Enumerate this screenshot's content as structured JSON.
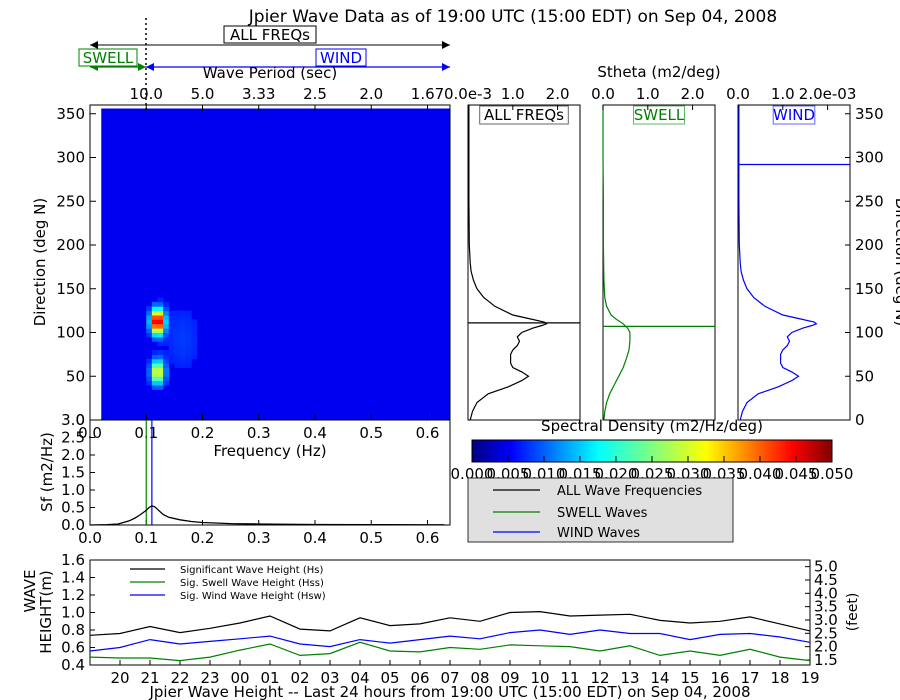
{
  "title": "Jpier Wave Data as of 19:00 UTC (15:00 EDT) on Sep 04, 2008",
  "colors": {
    "all": "#000000",
    "swell": "#008000",
    "wind": "#0000ff",
    "axes": "#000000",
    "legend_bg": "#e0e0e0"
  },
  "band_labels": {
    "all": "ALL FREQs",
    "swell": "SWELL",
    "wind": "WIND"
  },
  "chart_data": [
    {
      "id": "heatmap",
      "type": "heatmap",
      "title": "",
      "xlabel": "Frequency (Hz)",
      "ylabel": "Direction (deg N)",
      "top_xlabel": "Wave Period (sec)",
      "xlim": [
        0.0,
        0.64
      ],
      "ylim": [
        0,
        360
      ],
      "xticks": [
        "0.0",
        "0.1",
        "0.2",
        "0.3",
        "0.4",
        "0.5",
        "0.6"
      ],
      "xtick_values": [
        0.0,
        0.1,
        0.2,
        0.3,
        0.4,
        0.5,
        0.6
      ],
      "yticks": [
        "0",
        "50",
        "100",
        "150",
        "200",
        "250",
        "300",
        "350"
      ],
      "ytick_values": [
        0,
        50,
        100,
        150,
        200,
        250,
        300,
        350
      ],
      "top_ticks": [
        "10.0",
        "5.0",
        "3.33",
        "2.5",
        "2.0",
        "1.67"
      ],
      "top_tick_freqs": [
        0.1,
        0.2,
        0.3,
        0.4,
        0.5,
        0.6
      ],
      "swell_wind_split_hz": 0.1,
      "colorbar": {
        "label": "Spectral Density (m2/Hz/deg)",
        "range": [
          0.0,
          0.05
        ],
        "ticks": [
          "0.000",
          "0.005",
          "0.010",
          "0.015",
          "0.020",
          "0.025",
          "0.030",
          "0.035",
          "0.040",
          "0.045",
          "0.050"
        ]
      },
      "peaks": [
        {
          "freq": 0.12,
          "dir": 113,
          "density": 0.05
        },
        {
          "freq": 0.12,
          "dir": 55,
          "density": 0.03
        }
      ]
    },
    {
      "id": "freq_spectrum",
      "type": "line",
      "title": "",
      "xlabel": "Frequency (Hz)",
      "ylabel": "Sf (m2/Hz)",
      "xlim": [
        0.0,
        0.64
      ],
      "ylim": [
        0.0,
        3.0
      ],
      "xticks": [
        "0.0",
        "0.1",
        "0.2",
        "0.3",
        "0.4",
        "0.5",
        "0.6"
      ],
      "xtick_values": [
        0.0,
        0.1,
        0.2,
        0.3,
        0.4,
        0.5,
        0.6
      ],
      "yticks": [
        "0.0",
        "0.5",
        "1.0",
        "1.5",
        "2.0",
        "2.5",
        "3.0"
      ],
      "ytick_values": [
        0.0,
        0.5,
        1.0,
        1.5,
        2.0,
        2.5,
        3.0
      ],
      "x": [
        0.0,
        0.03,
        0.05,
        0.07,
        0.08,
        0.09,
        0.1,
        0.105,
        0.11,
        0.115,
        0.12,
        0.13,
        0.14,
        0.16,
        0.18,
        0.2,
        0.25,
        0.3,
        0.35,
        0.4,
        0.5,
        0.6,
        0.63
      ],
      "y": [
        0.0,
        0.01,
        0.03,
        0.12,
        0.2,
        0.3,
        0.42,
        0.5,
        0.55,
        0.52,
        0.45,
        0.3,
        0.22,
        0.15,
        0.1,
        0.07,
        0.04,
        0.03,
        0.02,
        0.015,
        0.01,
        0.005,
        0.005
      ],
      "vlines": [
        {
          "x": 0.1,
          "color": "#008000"
        },
        {
          "x": 0.11,
          "color": "#0000ff"
        }
      ]
    },
    {
      "id": "stheta_all",
      "type": "line",
      "title": "",
      "panel_label": "ALL FREQs",
      "xlim": [
        0.0,
        2.5
      ],
      "ylim": [
        0,
        360
      ],
      "top_ticks": [
        "0.0e-3",
        "1.0",
        "2.0"
      ],
      "top_tick_values": [
        0.0,
        1.0,
        2.0
      ],
      "dir": [
        0,
        10,
        20,
        30,
        38,
        45,
        50,
        55,
        60,
        65,
        70,
        75,
        80,
        85,
        90,
        95,
        100,
        105,
        108,
        110,
        112,
        116,
        120,
        130,
        140,
        150,
        160,
        170,
        180,
        200,
        250,
        300,
        360
      ],
      "value": [
        0.05,
        0.1,
        0.2,
        0.45,
        0.9,
        1.2,
        1.35,
        1.2,
        1.0,
        0.95,
        0.95,
        0.95,
        1.0,
        1.1,
        1.15,
        1.1,
        1.2,
        1.45,
        1.65,
        1.75,
        1.7,
        1.35,
        1.0,
        0.6,
        0.35,
        0.2,
        0.12,
        0.07,
        0.05,
        0.03,
        0.02,
        0.02,
        0.02
      ],
      "mean_dir": 111,
      "line_color": "#000000"
    },
    {
      "id": "stheta_swell",
      "type": "line",
      "title": "",
      "panel_label": "SWELL",
      "xlim": [
        0.0,
        2.5
      ],
      "ylim": [
        0,
        360
      ],
      "top_label": "Stheta (m2/deg)",
      "top_ticks": [
        "0.0",
        "1.0",
        "2.0"
      ],
      "top_tick_values": [
        0.0,
        1.0,
        2.0
      ],
      "dir": [
        0,
        10,
        20,
        30,
        40,
        50,
        60,
        70,
        80,
        90,
        100,
        105,
        110,
        115,
        120,
        130,
        140,
        160,
        200,
        250,
        300,
        360
      ],
      "value": [
        0.02,
        0.04,
        0.08,
        0.15,
        0.25,
        0.35,
        0.45,
        0.52,
        0.58,
        0.6,
        0.6,
        0.55,
        0.45,
        0.3,
        0.18,
        0.08,
        0.04,
        0.02,
        0.01,
        0.01,
        0.0,
        0.0
      ],
      "mean_dir": 107,
      "line_color": "#008000"
    },
    {
      "id": "stheta_wind",
      "type": "line",
      "title": "",
      "panel_label": "WIND",
      "xlim": [
        0.0,
        2.5
      ],
      "ylim": [
        0,
        360
      ],
      "ylabel": "Direction (deg N)",
      "top_ticks": [
        "0.0",
        "1.0",
        "2.0e-03"
      ],
      "top_tick_values": [
        0.0,
        1.0,
        2.0
      ],
      "yticks": [
        "0",
        "50",
        "100",
        "150",
        "200",
        "250",
        "300",
        "350"
      ],
      "ytick_values": [
        0,
        50,
        100,
        150,
        200,
        250,
        300,
        350
      ],
      "dir": [
        0,
        10,
        20,
        30,
        38,
        45,
        50,
        55,
        60,
        65,
        70,
        75,
        80,
        85,
        90,
        95,
        100,
        105,
        108,
        110,
        112,
        116,
        120,
        130,
        140,
        150,
        160,
        170,
        180,
        200,
        250,
        300,
        360
      ],
      "value": [
        0.05,
        0.1,
        0.2,
        0.45,
        0.9,
        1.2,
        1.35,
        1.2,
        1.0,
        0.95,
        0.95,
        0.95,
        1.0,
        1.1,
        1.15,
        1.1,
        1.2,
        1.45,
        1.65,
        1.75,
        1.7,
        1.35,
        1.0,
        0.6,
        0.35,
        0.2,
        0.12,
        0.07,
        0.05,
        0.03,
        0.02,
        0.02,
        0.02
      ],
      "mean_dir": 292,
      "line_color": "#0000ff"
    },
    {
      "id": "wave_height",
      "type": "line",
      "title": "",
      "xlabel": "Jpier Wave Height -- Last 24 hours from 19:00 UTC (15:00 EDT) on Sep 04, 2008",
      "ylabel_lines": [
        "WAVE",
        "HEIGHT(m)"
      ],
      "right_ylabel": "(feet)",
      "categories": [
        "19",
        "20",
        "21",
        "22",
        "23",
        "00",
        "01",
        "02",
        "03",
        "04",
        "05",
        "06",
        "07",
        "08",
        "09",
        "10",
        "11",
        "12",
        "13",
        "14",
        "15",
        "16",
        "17",
        "18",
        "19"
      ],
      "xtick_labels": [
        "20",
        "21",
        "22",
        "23",
        "00",
        "01",
        "02",
        "03",
        "04",
        "05",
        "06",
        "07",
        "08",
        "09",
        "10",
        "11",
        "12",
        "13",
        "14",
        "15",
        "16",
        "17",
        "18",
        "19"
      ],
      "ylim": [
        0.4,
        1.6
      ],
      "yticks": [
        "0.4",
        "0.6",
        "0.8",
        "1.0",
        "1.2",
        "1.4",
        "1.6"
      ],
      "ytick_values": [
        0.4,
        0.6,
        0.8,
        1.0,
        1.2,
        1.4,
        1.6
      ],
      "right_yticks": [
        "1.5",
        "2.0",
        "2.5",
        "3.0",
        "3.5",
        "4.0",
        "4.5",
        "5.0"
      ],
      "right_ytick_values": [
        1.5,
        2.0,
        2.5,
        3.0,
        3.5,
        4.0,
        4.5,
        5.0
      ],
      "series": [
        {
          "name": "Significant Wave Height (Hs)",
          "color": "#000000",
          "values": [
            0.74,
            0.76,
            0.84,
            0.77,
            0.82,
            0.88,
            0.96,
            0.81,
            0.79,
            0.94,
            0.85,
            0.87,
            0.94,
            0.9,
            1.0,
            1.01,
            0.96,
            0.97,
            0.98,
            0.91,
            0.88,
            0.9,
            0.95,
            0.87,
            0.79
          ]
        },
        {
          "name": "Sig. Swell Wave Height (Hss)",
          "color": "#008000",
          "values": [
            0.49,
            0.48,
            0.48,
            0.45,
            0.49,
            0.57,
            0.64,
            0.51,
            0.53,
            0.66,
            0.56,
            0.55,
            0.6,
            0.58,
            0.63,
            0.62,
            0.61,
            0.56,
            0.62,
            0.51,
            0.56,
            0.51,
            0.58,
            0.49,
            0.45
          ]
        },
        {
          "name": "Sig. Wind Wave Height (Hsw)",
          "color": "#0000ff",
          "values": [
            0.56,
            0.6,
            0.69,
            0.64,
            0.67,
            0.7,
            0.73,
            0.64,
            0.61,
            0.69,
            0.65,
            0.69,
            0.73,
            0.7,
            0.77,
            0.8,
            0.75,
            0.8,
            0.76,
            0.76,
            0.69,
            0.75,
            0.76,
            0.72,
            0.66
          ]
        }
      ]
    }
  ],
  "legend": {
    "items": [
      {
        "label": "ALL Wave Frequencies",
        "color": "#000000"
      },
      {
        "label": "SWELL Waves",
        "color": "#008000"
      },
      {
        "label": "WIND Waves",
        "color": "#0000ff"
      }
    ]
  }
}
